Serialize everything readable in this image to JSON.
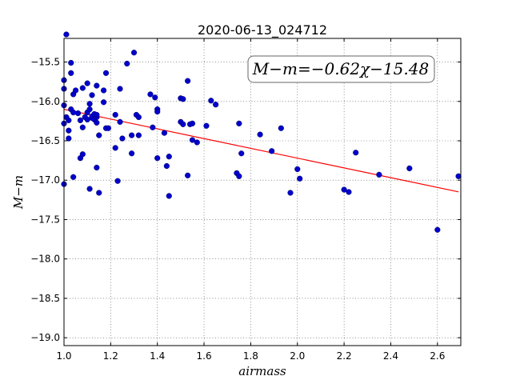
{
  "chart_data": {
    "type": "scatter",
    "title": "2020-06-13_024712",
    "xlabel": "airmass",
    "ylabel": "M−m",
    "xlim": [
      1.0,
      2.7
    ],
    "ylim": [
      -19.1,
      -15.2
    ],
    "y_inverted": false,
    "grid": true,
    "xticks": [
      1.0,
      1.2,
      1.4,
      1.6,
      1.8,
      2.0,
      2.2,
      2.4,
      2.6
    ],
    "xtick_labels": [
      "1.0",
      "1.2",
      "1.4",
      "1.6",
      "1.8",
      "2.0",
      "2.2",
      "2.4",
      "2.6"
    ],
    "yticks": [
      -15.5,
      -16.0,
      -16.5,
      -17.0,
      -17.5,
      -18.0,
      -18.5,
      -19.0
    ],
    "ytick_labels": [
      "−15.5",
      "−16.0",
      "−16.5",
      "−17.0",
      "−17.5",
      "−18.0",
      "−18.5",
      "−19.0"
    ],
    "fit_label": "M−m=−0.62χ−15.48",
    "fit": {
      "slope": -0.62,
      "intercept": -15.48,
      "x_range": [
        1.0,
        2.69
      ],
      "color": "#ff0000"
    },
    "marker_color": "#0000cc",
    "series": [
      {
        "points": [
          [
            1.0,
            -15.73
          ],
          [
            1.0,
            -15.84
          ],
          [
            1.0,
            -16.05
          ],
          [
            1.0,
            -16.28
          ],
          [
            1.0,
            -17.05
          ],
          [
            1.01,
            -15.15
          ],
          [
            1.01,
            -16.2
          ],
          [
            1.02,
            -16.37
          ],
          [
            1.02,
            -16.47
          ],
          [
            1.02,
            -16.24
          ],
          [
            1.03,
            -15.51
          ],
          [
            1.03,
            -15.64
          ],
          [
            1.03,
            -16.1
          ],
          [
            1.04,
            -15.91
          ],
          [
            1.04,
            -16.14
          ],
          [
            1.04,
            -16.96
          ],
          [
            1.05,
            -15.86
          ],
          [
            1.06,
            -16.15
          ],
          [
            1.07,
            -16.72
          ],
          [
            1.07,
            -16.24
          ],
          [
            1.08,
            -16.67
          ],
          [
            1.08,
            -16.33
          ],
          [
            1.08,
            -15.83
          ],
          [
            1.09,
            -16.2
          ],
          [
            1.1,
            -15.77
          ],
          [
            1.1,
            -16.14
          ],
          [
            1.1,
            -16.23
          ],
          [
            1.11,
            -16.03
          ],
          [
            1.11,
            -16.1
          ],
          [
            1.11,
            -17.11
          ],
          [
            1.12,
            -15.92
          ],
          [
            1.12,
            -16.21
          ],
          [
            1.12,
            -16.19
          ],
          [
            1.13,
            -16.23
          ],
          [
            1.13,
            -16.16
          ],
          [
            1.14,
            -16.2
          ],
          [
            1.14,
            -16.27
          ],
          [
            1.14,
            -16.17
          ],
          [
            1.14,
            -15.8
          ],
          [
            1.14,
            -16.84
          ],
          [
            1.15,
            -16.43
          ],
          [
            1.15,
            -17.16
          ],
          [
            1.17,
            -15.86
          ],
          [
            1.17,
            -16.01
          ],
          [
            1.18,
            -15.64
          ],
          [
            1.18,
            -16.34
          ],
          [
            1.19,
            -16.34
          ],
          [
            1.22,
            -16.17
          ],
          [
            1.22,
            -16.59
          ],
          [
            1.23,
            -17.01
          ],
          [
            1.24,
            -16.26
          ],
          [
            1.24,
            -15.84
          ],
          [
            1.25,
            -16.47
          ],
          [
            1.27,
            -15.52
          ],
          [
            1.29,
            -16.43
          ],
          [
            1.29,
            -16.66
          ],
          [
            1.3,
            -15.38
          ],
          [
            1.31,
            -16.17
          ],
          [
            1.32,
            -16.2
          ],
          [
            1.32,
            -16.43
          ],
          [
            1.37,
            -15.91
          ],
          [
            1.38,
            -16.33
          ],
          [
            1.39,
            -15.95
          ],
          [
            1.4,
            -16.1
          ],
          [
            1.4,
            -16.13
          ],
          [
            1.4,
            -16.72
          ],
          [
            1.43,
            -16.4
          ],
          [
            1.44,
            -16.82
          ],
          [
            1.45,
            -16.7
          ],
          [
            1.45,
            -17.2
          ],
          [
            1.5,
            -16.26
          ],
          [
            1.5,
            -15.96
          ],
          [
            1.51,
            -15.97
          ],
          [
            1.51,
            -16.29
          ],
          [
            1.53,
            -15.74
          ],
          [
            1.53,
            -16.94
          ],
          [
            1.54,
            -16.29
          ],
          [
            1.55,
            -16.28
          ],
          [
            1.55,
            -16.49
          ],
          [
            1.57,
            -16.52
          ],
          [
            1.61,
            -16.31
          ],
          [
            1.63,
            -15.99
          ],
          [
            1.65,
            -16.04
          ],
          [
            1.74,
            -16.91
          ],
          [
            1.75,
            -16.28
          ],
          [
            1.75,
            -16.95
          ],
          [
            1.76,
            -16.66
          ],
          [
            1.84,
            -16.42
          ],
          [
            1.89,
            -16.63
          ],
          [
            1.93,
            -16.34
          ],
          [
            1.97,
            -17.16
          ],
          [
            2.0,
            -16.86
          ],
          [
            2.01,
            -16.98
          ],
          [
            2.2,
            -17.12
          ],
          [
            2.22,
            -17.15
          ],
          [
            2.25,
            -16.65
          ],
          [
            2.35,
            -16.93
          ],
          [
            2.48,
            -16.85
          ],
          [
            2.6,
            -17.63
          ],
          [
            2.69,
            -16.95
          ]
        ]
      }
    ]
  }
}
